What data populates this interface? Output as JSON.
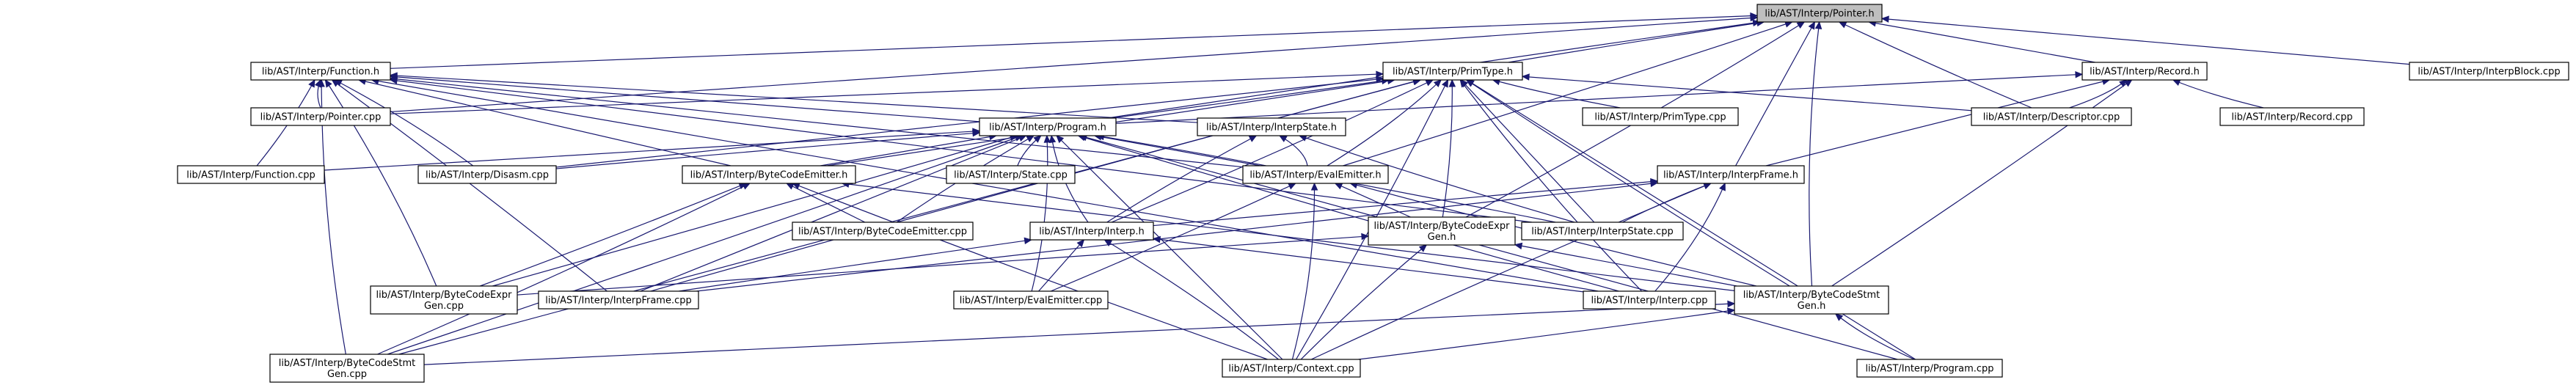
{
  "colors": {
    "edge": "#191970",
    "root_fill": "#bfbfbf",
    "node_fill": "#ffffff",
    "border": "#000000"
  },
  "diagram": {
    "type": "include-dependency-graph",
    "nodes": [
      {
        "id": "pointer_h",
        "lines": [
          "lib/AST/Interp/Pointer.h"
        ],
        "root": true
      },
      {
        "id": "function_h",
        "lines": [
          "lib/AST/Interp/Function.h"
        ]
      },
      {
        "id": "primtype_h",
        "lines": [
          "lib/AST/Interp/PrimType.h"
        ]
      },
      {
        "id": "record_h",
        "lines": [
          "lib/AST/Interp/Record.h"
        ]
      },
      {
        "id": "interpblock_cpp",
        "lines": [
          "lib/AST/Interp/InterpBlock.cpp"
        ]
      },
      {
        "id": "pointer_cpp",
        "lines": [
          "lib/AST/Interp/Pointer.cpp"
        ]
      },
      {
        "id": "program_h",
        "lines": [
          "lib/AST/Interp/Program.h"
        ]
      },
      {
        "id": "interpstate_h",
        "lines": [
          "lib/AST/Interp/InterpState.h"
        ]
      },
      {
        "id": "primtype_cpp",
        "lines": [
          "lib/AST/Interp/PrimType.cpp"
        ]
      },
      {
        "id": "descriptor_cpp",
        "lines": [
          "lib/AST/Interp/Descriptor.cpp"
        ]
      },
      {
        "id": "record_cpp",
        "lines": [
          "lib/AST/Interp/Record.cpp"
        ]
      },
      {
        "id": "function_cpp",
        "lines": [
          "lib/AST/Interp/Function.cpp"
        ]
      },
      {
        "id": "disasm_cpp",
        "lines": [
          "lib/AST/Interp/Disasm.cpp"
        ]
      },
      {
        "id": "bytecodeemitter_h",
        "lines": [
          "lib/AST/Interp/ByteCodeEmitter.h"
        ]
      },
      {
        "id": "state_cpp",
        "lines": [
          "lib/AST/Interp/State.cpp"
        ]
      },
      {
        "id": "evalemitter_h",
        "lines": [
          "lib/AST/Interp/EvalEmitter.h"
        ]
      },
      {
        "id": "interpframe_h",
        "lines": [
          "lib/AST/Interp/InterpFrame.h"
        ]
      },
      {
        "id": "bytecodeemitter_cpp",
        "lines": [
          "lib/AST/Interp/ByteCodeEmitter.cpp"
        ]
      },
      {
        "id": "interp_h",
        "lines": [
          "lib/AST/Interp/Interp.h"
        ]
      },
      {
        "id": "bytecodeexprgen_h",
        "lines": [
          "lib/AST/Interp/ByteCodeExpr",
          "Gen.h"
        ]
      },
      {
        "id": "interpstate_cpp",
        "lines": [
          "lib/AST/Interp/InterpState.cpp"
        ]
      },
      {
        "id": "bytecodeexprgen_cpp",
        "lines": [
          "lib/AST/Interp/ByteCodeExpr",
          "Gen.cpp"
        ]
      },
      {
        "id": "interpframe_cpp",
        "lines": [
          "lib/AST/Interp/InterpFrame.cpp"
        ]
      },
      {
        "id": "evalemitter_cpp",
        "lines": [
          "lib/AST/Interp/EvalEmitter.cpp"
        ]
      },
      {
        "id": "interp_cpp",
        "lines": [
          "lib/AST/Interp/Interp.cpp"
        ]
      },
      {
        "id": "bytecodestmtgen_h",
        "lines": [
          "lib/AST/Interp/ByteCodeStmt",
          "Gen.h"
        ]
      },
      {
        "id": "bytecodestmtgen_cpp",
        "lines": [
          "lib/AST/Interp/ByteCodeStmt",
          "Gen.cpp"
        ]
      },
      {
        "id": "context_cpp",
        "lines": [
          "lib/AST/Interp/Context.cpp"
        ]
      },
      {
        "id": "program_cpp",
        "lines": [
          "lib/AST/Interp/Program.cpp"
        ]
      }
    ],
    "edges": [
      [
        "pointer_h",
        "function_h"
      ],
      [
        "pointer_h",
        "primtype_h"
      ],
      [
        "pointer_h",
        "record_h"
      ],
      [
        "pointer_h",
        "interpblock_cpp"
      ],
      [
        "pointer_h",
        "pointer_cpp"
      ],
      [
        "pointer_h",
        "program_h"
      ],
      [
        "pointer_h",
        "descriptor_cpp"
      ],
      [
        "pointer_h",
        "interpframe_h"
      ],
      [
        "pointer_h",
        "evalemitter_h"
      ],
      [
        "pointer_h",
        "bytecodeexprgen_h"
      ],
      [
        "pointer_h",
        "bytecodestmtgen_h"
      ],
      [
        "function_h",
        "pointer_cpp"
      ],
      [
        "function_h",
        "program_h"
      ],
      [
        "function_h",
        "function_cpp"
      ],
      [
        "function_h",
        "disasm_cpp"
      ],
      [
        "function_h",
        "interpstate_h"
      ],
      [
        "function_h",
        "interpstate_cpp"
      ],
      [
        "function_h",
        "interp_cpp"
      ],
      [
        "function_h",
        "interpframe_cpp"
      ],
      [
        "function_h",
        "bytecodeexprgen_cpp"
      ],
      [
        "function_h",
        "bytecodestmtgen_cpp"
      ],
      [
        "function_h",
        "evalemitter_h"
      ],
      [
        "function_h",
        "bytecodeemitter_h"
      ],
      [
        "primtype_h",
        "program_h"
      ],
      [
        "primtype_h",
        "pointer_cpp"
      ],
      [
        "primtype_h",
        "primtype_cpp"
      ],
      [
        "primtype_h",
        "descriptor_cpp"
      ],
      [
        "primtype_h",
        "interpstate_cpp"
      ],
      [
        "primtype_h",
        "bytecodeexprgen_h"
      ],
      [
        "primtype_h",
        "interp_h"
      ],
      [
        "primtype_h",
        "interp_cpp"
      ],
      [
        "primtype_h",
        "bytecodestmtgen_h"
      ],
      [
        "primtype_h",
        "program_cpp"
      ],
      [
        "primtype_h",
        "context_cpp"
      ],
      [
        "primtype_h",
        "evalemitter_h"
      ],
      [
        "primtype_h",
        "interpframe_cpp"
      ],
      [
        "primtype_h",
        "bytecodestmtgen_cpp"
      ],
      [
        "primtype_h",
        "disasm_cpp"
      ],
      [
        "primtype_h",
        "bytecodeemitter_h"
      ],
      [
        "record_h",
        "descriptor_cpp"
      ],
      [
        "record_h",
        "record_cpp"
      ],
      [
        "record_h",
        "program_h"
      ],
      [
        "record_h",
        "interpframe_h"
      ],
      [
        "record_h",
        "bytecodestmtgen_h"
      ],
      [
        "program_h",
        "function_cpp"
      ],
      [
        "program_h",
        "disasm_cpp"
      ],
      [
        "program_h",
        "state_cpp"
      ],
      [
        "program_h",
        "bytecodeemitter_h"
      ],
      [
        "program_h",
        "evalemitter_h"
      ],
      [
        "program_h",
        "interpstate_cpp"
      ],
      [
        "program_h",
        "interp_h"
      ],
      [
        "program_h",
        "bytecodeemitter_cpp"
      ],
      [
        "program_h",
        "interpframe_cpp"
      ],
      [
        "program_h",
        "bytecodeexprgen_cpp"
      ],
      [
        "program_h",
        "evalemitter_cpp"
      ],
      [
        "program_h",
        "interp_cpp"
      ],
      [
        "program_h",
        "program_cpp"
      ],
      [
        "program_h",
        "context_cpp"
      ],
      [
        "program_h",
        "bytecodestmtgen_cpp"
      ],
      [
        "interpstate_h",
        "evalemitter_h"
      ],
      [
        "interpstate_h",
        "interpstate_cpp"
      ],
      [
        "interpstate_h",
        "interp_h"
      ],
      [
        "bytecodeemitter_h",
        "bytecodeemitter_cpp"
      ],
      [
        "bytecodeemitter_h",
        "bytecodeexprgen_cpp"
      ],
      [
        "bytecodeemitter_h",
        "bytecodestmtgen_cpp"
      ],
      [
        "bytecodeemitter_h",
        "context_cpp"
      ],
      [
        "bytecodeemitter_h",
        "bytecodestmtgen_h"
      ],
      [
        "evalemitter_h",
        "bytecodeexprgen_h"
      ],
      [
        "evalemitter_h",
        "evalemitter_cpp"
      ],
      [
        "evalemitter_h",
        "context_cpp"
      ],
      [
        "evalemitter_h",
        "bytecodestmtgen_h"
      ],
      [
        "interpframe_h",
        "interpstate_cpp"
      ],
      [
        "interpframe_h",
        "interp_h"
      ],
      [
        "interpframe_h",
        "interpframe_cpp"
      ],
      [
        "interpframe_h",
        "interp_cpp"
      ],
      [
        "interpframe_h",
        "context_cpp"
      ],
      [
        "interp_h",
        "interpframe_cpp"
      ],
      [
        "interp_h",
        "evalemitter_cpp"
      ],
      [
        "interp_h",
        "interp_cpp"
      ],
      [
        "interp_h",
        "context_cpp"
      ],
      [
        "bytecodeexprgen_h",
        "bytecodeexprgen_cpp"
      ],
      [
        "bytecodeexprgen_h",
        "context_cpp"
      ],
      [
        "bytecodeexprgen_h",
        "bytecodestmtgen_h"
      ],
      [
        "bytecodestmtgen_h",
        "bytecodestmtgen_cpp"
      ],
      [
        "bytecodestmtgen_h",
        "context_cpp"
      ],
      [
        "bytecodestmtgen_h",
        "program_cpp"
      ]
    ]
  }
}
